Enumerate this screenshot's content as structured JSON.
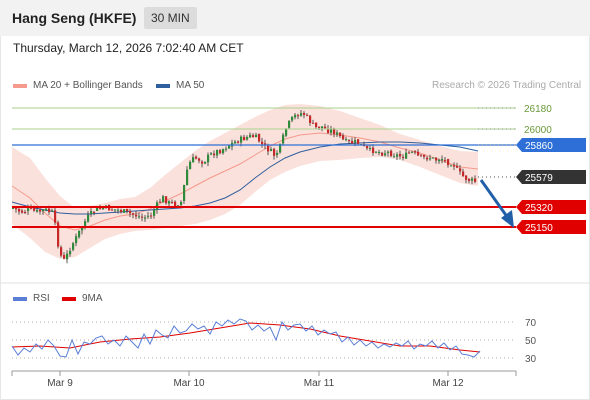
{
  "header": {
    "instrument": "Hang Seng (HKFE)",
    "timeframe": "30 MIN"
  },
  "datetime": "Thursday, March 12, 2026 7:02:40 AM CET",
  "legend": {
    "ma20": {
      "label": "MA 20 + Bollinger Bands",
      "color": "#f59a8c"
    },
    "ma50": {
      "label": "MA 50",
      "color": "#2f5f9e"
    }
  },
  "credit": "Research © 2026 Trading Central",
  "rsi_legend": {
    "rsi": {
      "label": "RSI",
      "color": "#5b7fd6"
    },
    "ma9": {
      "label": "9MA",
      "color": "#e00000"
    }
  },
  "levels": [
    {
      "label": "26180",
      "value": 26180,
      "style": "green"
    },
    {
      "label": "26000",
      "value": 26000,
      "style": "green"
    },
    {
      "label": "25860",
      "value": 25860,
      "style": "blue"
    },
    {
      "label": "25579",
      "value": 25579,
      "style": "current"
    },
    {
      "label": "25320",
      "value": 25320,
      "style": "red"
    },
    {
      "label": "25150",
      "value": 25150,
      "style": "red"
    }
  ],
  "rsi_axis": [
    "70",
    "50",
    "30"
  ],
  "x_axis": [
    "Mar 9",
    "Mar 10",
    "Mar 11",
    "Mar 12"
  ],
  "colors": {
    "up": "#2e8b3a",
    "down": "#c62828",
    "arrow": "#2160a8",
    "green_line": "#a9d18e",
    "blue_line": "#2d6fd6",
    "red_line": "#e00000"
  }
}
